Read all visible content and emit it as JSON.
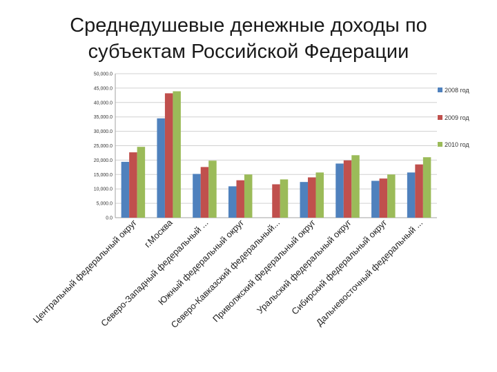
{
  "title_line1": "Среднедушевые денежные доходы по",
  "title_line2": "субъектам Российской Федерации",
  "chart_data": {
    "type": "bar",
    "title": "Среднедушевые денежные доходы по субъектам Российской Федерации",
    "categories": [
      "Центральный федеральный округ",
      "г.Москва",
      "Северо-Западный федеральный ...",
      "Южный федеральный округ",
      "Северо-Кавказский федеральный...",
      "Приволжский федеральный округ",
      "Уральский федеральный округ",
      "Сибирский федеральный округ",
      "Дальневосточный федеральный ..."
    ],
    "series": [
      {
        "name": "2008 год",
        "color": "#4f81bd",
        "values": [
          19400,
          34500,
          15200,
          10900,
          null,
          12400,
          18800,
          12800,
          15700
        ]
      },
      {
        "name": "2009 год",
        "color": "#c0504d",
        "values": [
          22700,
          43200,
          17600,
          13000,
          11600,
          14000,
          19900,
          13600,
          18500
        ]
      },
      {
        "name": "2010 год",
        "color": "#9bbb59",
        "values": [
          24600,
          43900,
          19800,
          15000,
          13300,
          15700,
          21700,
          15000,
          21000
        ]
      }
    ],
    "y_ticks": [
      "0.0",
      "5,000.0",
      "10,000.0",
      "15,000.0",
      "20,000.0",
      "25,000.0",
      "30,000.0",
      "35,000.0",
      "40,000.0",
      "45,000.0",
      "50,000.0"
    ],
    "ylim": [
      0,
      50000
    ],
    "xlabel": "",
    "ylabel": "",
    "legend_position": "right",
    "grid": true
  }
}
